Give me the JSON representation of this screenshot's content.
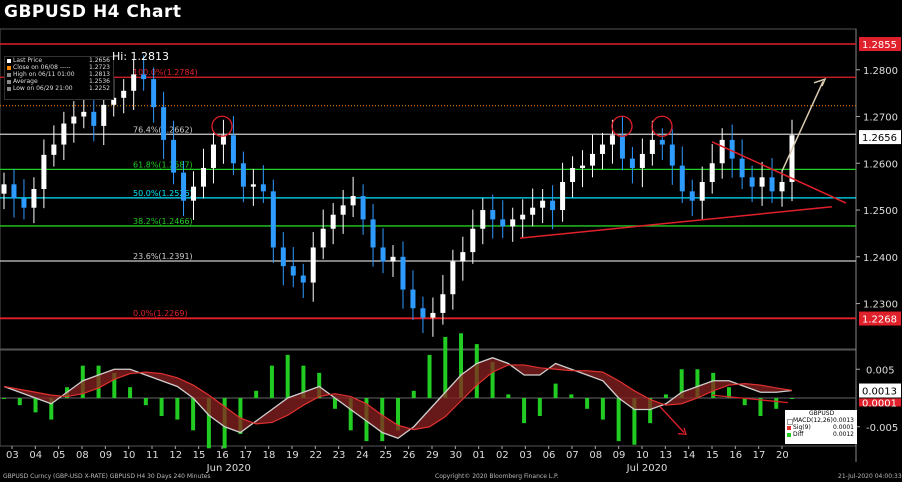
{
  "title": "GBPUSD H4 Chart",
  "hi_label": "Hi: 1.2813",
  "legend": {
    "items": [
      {
        "label": "Last Price",
        "value": "1.2656",
        "color": "#ffffff"
      },
      {
        "label": "Close on 06/08 -----",
        "value": "1.2723",
        "color": "#ff8c00"
      },
      {
        "label": "High on 06/11 01:00",
        "value": "1.2813",
        "color": "#cccccc"
      },
      {
        "label": "Average",
        "value": "1.2536",
        "color": "#cccccc"
      },
      {
        "label": "Low on 06/29 21:00",
        "value": "1.2252",
        "color": "#cccccc"
      }
    ]
  },
  "price_tags": {
    "top": "1.2855",
    "last": "1.2656",
    "low": "1.2268"
  },
  "macd_legend": {
    "title": "GBPUSD",
    "items": [
      {
        "label": "MACD(12,26)",
        "value": "0.0013",
        "color": "#ffffff"
      },
      {
        "label": "Sig(9)",
        "value": "0.0001",
        "color": "#e03030"
      },
      {
        "label": "Diff",
        "value": "0.0012",
        "color": "#22cc22"
      }
    ],
    "tags": {
      "macd": "0.0013",
      "sig": "0.0001"
    }
  },
  "footer": {
    "left": "GBPUSD Curncy (GBP-USD X-RATE) GBPUSD H4 30 Days 240 Minutes",
    "center": "Copyright© 2020 Bloomberg Finance L.P.",
    "right": "21-Jul-2020 04:00:33"
  },
  "colors": {
    "up": "#ffffff",
    "down": "#2e9bff",
    "fib_green": "#22cc22",
    "fib_cyan": "#00e5ff",
    "red": "#e0202a"
  },
  "chart_data": {
    "type": "candlestick",
    "title": "GBPUSD H4 Chart",
    "ylim": [
      1.2205,
      1.2885
    ],
    "y_ticks": [
      1.23,
      1.24,
      1.25,
      1.26,
      1.27,
      1.28
    ],
    "y_tick_labels": [
      "1.2300",
      "1.2400",
      "1.2500",
      "1.2600",
      "1.2700",
      "1.2800"
    ],
    "x_tick_labels": [
      "03",
      "04",
      "05",
      "08",
      "09",
      "10",
      "11",
      "12",
      "15",
      "16",
      "17",
      "18",
      "19",
      "22",
      "23",
      "24",
      "25",
      "26",
      "29",
      "30",
      "01",
      "02",
      "03",
      "06",
      "07",
      "08",
      "09",
      "10",
      "13",
      "14",
      "15",
      "16",
      "17",
      "20"
    ],
    "month_labels": [
      {
        "label": "Jun 2020",
        "after_index": 8
      },
      {
        "label": "Jul 2020",
        "after_index": 26
      }
    ],
    "fib_levels": [
      {
        "label": "100.0%(1.2784)",
        "value": 1.2784,
        "color": "#e0202a"
      },
      {
        "label": "76.4%(1.2662)",
        "value": 1.2662,
        "color": "#cccccc"
      },
      {
        "label": "61.8%(1.2587)",
        "value": 1.2587,
        "color": "#22cc22"
      },
      {
        "label": "50.0%(1.2526)",
        "value": 1.2526,
        "color": "#00e5ff"
      },
      {
        "label": "38.2%(1.2466)",
        "value": 1.2466,
        "color": "#22cc22"
      },
      {
        "label": "23.6%(1.2391)",
        "value": 1.2391,
        "color": "#cccccc"
      },
      {
        "label": "0.0%(1.2269)",
        "value": 1.2269,
        "color": "#e0202a"
      }
    ],
    "h_lines": [
      {
        "value": 1.2855,
        "color": "#e0202a"
      },
      {
        "value": 1.2723,
        "color": "#ff8c00",
        "dotted": true
      },
      {
        "value": 1.2268,
        "color": "#e0202a"
      }
    ],
    "last_price": 1.2656,
    "closes": [
      1.2555,
      1.2525,
      1.2505,
      1.2545,
      1.2618,
      1.264,
      1.2685,
      1.27,
      1.271,
      1.268,
      1.2725,
      1.274,
      1.2755,
      1.279,
      1.278,
      1.272,
      1.265,
      1.258,
      1.252,
      1.255,
      1.259,
      1.264,
      1.266,
      1.26,
      1.255,
      1.2555,
      1.254,
      1.242,
      1.238,
      1.236,
      1.2345,
      1.242,
      1.246,
      1.249,
      1.251,
      1.253,
      1.248,
      1.242,
      1.239,
      1.24,
      1.233,
      1.229,
      1.227,
      1.228,
      1.232,
      1.239,
      1.241,
      1.246,
      1.25,
      1.248,
      1.2465,
      1.248,
      1.249,
      1.2505,
      1.252,
      1.25,
      1.256,
      1.259,
      1.2595,
      1.262,
      1.264,
      1.266,
      1.261,
      1.259,
      1.262,
      1.265,
      1.264,
      1.2595,
      1.254,
      1.252,
      1.256,
      1.26,
      1.265,
      1.261,
      1.257,
      1.255,
      1.257,
      1.254,
      1.256,
      1.266
    ],
    "annotations": [
      "resistance circles at 1.2662",
      "descending red trendline",
      "ascending red trendline",
      "bullish projection arrow"
    ],
    "macd": {
      "series": [
        {
          "name": "MACD(12,26)",
          "last": 0.0013
        },
        {
          "name": "Sig(9)",
          "last": 0.0001
        },
        {
          "name": "Diff",
          "last": 0.0012
        }
      ],
      "ylim": [
        -0.008,
        0.008
      ],
      "y_tick_labels": [
        "0.005",
        "-0.005"
      ],
      "macd_values": [
        0.002,
        0.001,
        0.0,
        -0.001,
        0.001,
        0.003,
        0.004,
        0.005,
        0.005,
        0.004,
        0.003,
        0.002,
        0.0,
        -0.003,
        -0.005,
        -0.006,
        -0.004,
        -0.002,
        0.0,
        0.001,
        0.002,
        0.0,
        -0.002,
        -0.004,
        -0.006,
        -0.007,
        -0.005,
        -0.002,
        0.001,
        0.004,
        0.006,
        0.007,
        0.006,
        0.004,
        0.004,
        0.006,
        0.005,
        0.004,
        0.003,
        0.0,
        -0.002,
        -0.002,
        -0.001,
        0.001,
        0.002,
        0.003,
        0.003,
        0.002,
        0.001,
        0.001,
        0.0013
      ]
    }
  }
}
